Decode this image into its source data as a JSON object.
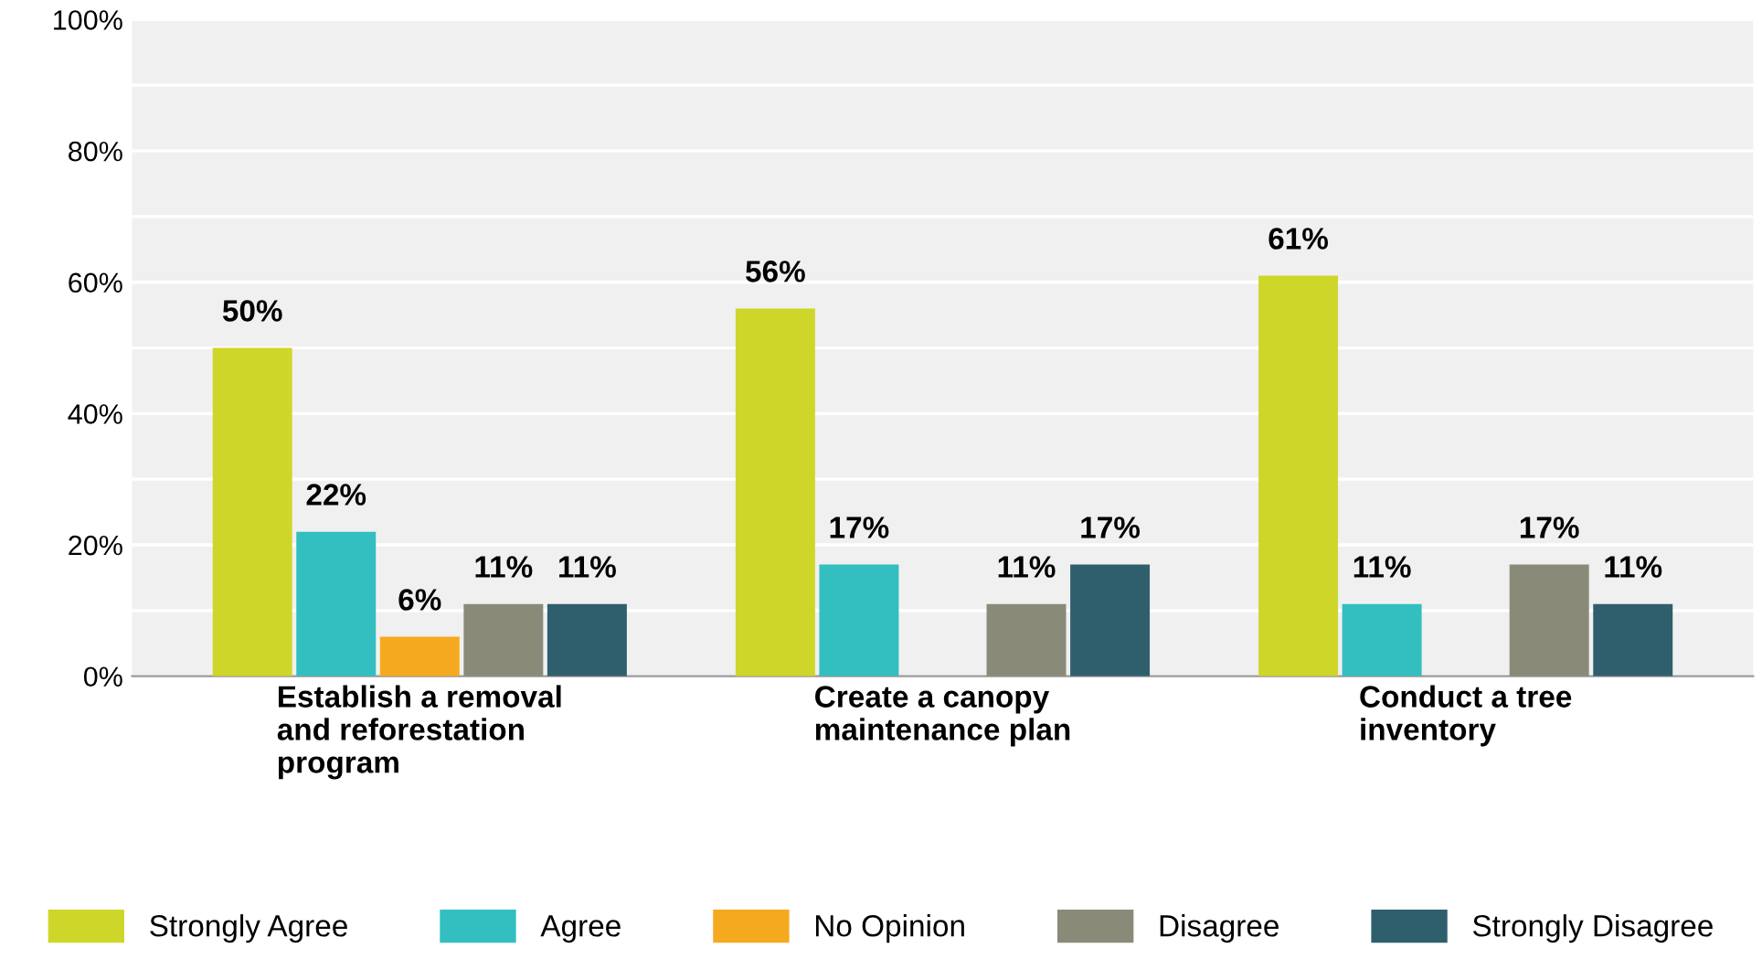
{
  "chart_data": {
    "type": "bar",
    "categories": [
      "Establish a removal\nand reforestation\nprogram",
      "Create a canopy\nmaintenance plan",
      "Conduct a tree\ninventory"
    ],
    "series": [
      {
        "name": "Strongly Agree",
        "color": "#cfd62a",
        "values": [
          50,
          56,
          61
        ],
        "value_labels": [
          "50%",
          "56%",
          "61%"
        ]
      },
      {
        "name": "Agree",
        "color": "#33bec0",
        "values": [
          22,
          17,
          11
        ],
        "value_labels": [
          "22%",
          "17%",
          "11%"
        ]
      },
      {
        "name": "No Opinion",
        "color": "#f5a91f",
        "values": [
          6,
          null,
          null
        ],
        "value_labels": [
          "6%",
          null,
          null
        ]
      },
      {
        "name": "Disagree",
        "color": "#8a8a78",
        "values": [
          11,
          11,
          17
        ],
        "value_labels": [
          "11%",
          "11%",
          "17%"
        ]
      },
      {
        "name": "Strongly Disagree",
        "color": "#2f5f6c",
        "values": [
          11,
          17,
          11
        ],
        "value_labels": [
          "11%",
          "17%",
          "11%"
        ]
      }
    ],
    "ylim": [
      0,
      100
    ],
    "yticks": [
      {
        "value": 0,
        "label": "0%"
      },
      {
        "value": 10,
        "label": null
      },
      {
        "value": 20,
        "label": "20%"
      },
      {
        "value": 30,
        "label": null
      },
      {
        "value": 40,
        "label": "40%"
      },
      {
        "value": 50,
        "label": null
      },
      {
        "value": 60,
        "label": "60%"
      },
      {
        "value": 70,
        "label": null
      },
      {
        "value": 80,
        "label": "80%"
      },
      {
        "value": 90,
        "label": null
      },
      {
        "value": 100,
        "label": "100%"
      }
    ],
    "grid": "y",
    "legend": "bottom"
  }
}
